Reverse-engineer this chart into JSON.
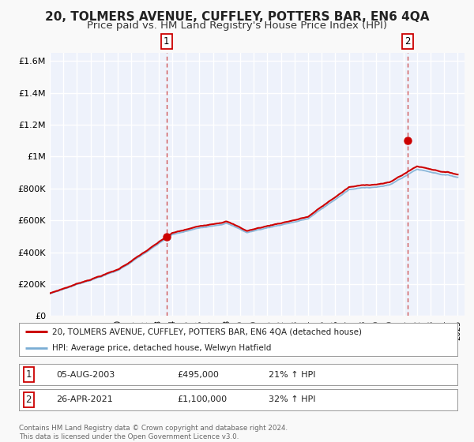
{
  "title": "20, TOLMERS AVENUE, CUFFLEY, POTTERS BAR, EN6 4QA",
  "subtitle": "Price paid vs. HM Land Registry's House Price Index (HPI)",
  "ylim": [
    0,
    1650000
  ],
  "yticks": [
    0,
    200000,
    400000,
    600000,
    800000,
    1000000,
    1200000,
    1400000,
    1600000
  ],
  "ytick_labels": [
    "£0",
    "£200K",
    "£400K",
    "£600K",
    "£800K",
    "£1M",
    "£1.2M",
    "£1.4M",
    "£1.6M"
  ],
  "xlim_start": 1995.0,
  "xlim_end": 2025.5,
  "sale1_x": 2003.59,
  "sale1_y": 495000,
  "sale2_x": 2021.32,
  "sale2_y": 1100000,
  "sale1_label": "1",
  "sale2_label": "2",
  "red_line_color": "#cc0000",
  "blue_line_color": "#7aadd4",
  "plot_bg_color": "#eef2fb",
  "grid_color": "#ffffff",
  "legend_entry1": "20, TOLMERS AVENUE, CUFFLEY, POTTERS BAR, EN6 4QA (detached house)",
  "legend_entry2": "HPI: Average price, detached house, Welwyn Hatfield",
  "table_row1": [
    "1",
    "05-AUG-2003",
    "£495,000",
    "21% ↑ HPI"
  ],
  "table_row2": [
    "2",
    "26-APR-2021",
    "£1,100,000",
    "32% ↑ HPI"
  ],
  "footer1": "Contains HM Land Registry data © Crown copyright and database right 2024.",
  "footer2": "This data is licensed under the Open Government Licence v3.0.",
  "title_fontsize": 11,
  "subtitle_fontsize": 9.5
}
